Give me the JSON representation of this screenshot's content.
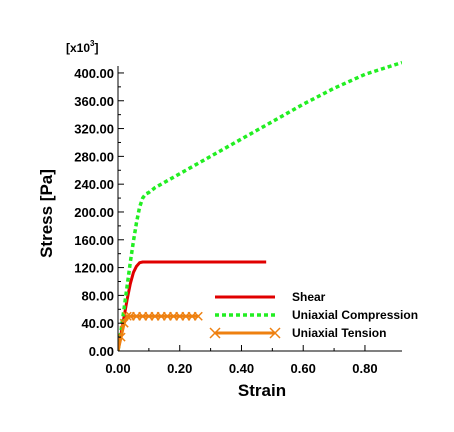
{
  "chart_data": {
    "type": "line",
    "xlabel": "Strain",
    "ylabel": "Stress [Pa]",
    "y_multiplier": {
      "base": "[x10",
      "exponent": "3",
      "close": "]"
    },
    "xlim": [
      0,
      0.92
    ],
    "ylim": [
      0,
      410
    ],
    "x_ticks": [
      0.0,
      0.2,
      0.4,
      0.6,
      0.8
    ],
    "x_tick_labels": [
      "0.00",
      "0.20",
      "0.40",
      "0.60",
      "0.80"
    ],
    "y_ticks": [
      0,
      40,
      80,
      120,
      160,
      200,
      240,
      280,
      320,
      360,
      400
    ],
    "y_tick_labels": [
      "0.00",
      "40.00",
      "80.00",
      "120.00",
      "160.00",
      "200.00",
      "240.00",
      "280.00",
      "320.00",
      "360.00",
      "400.00"
    ],
    "grid": false,
    "legend_position": "lower-right",
    "series": [
      {
        "name": "Shear",
        "color": "#e00000",
        "style": "solid",
        "marker": "none",
        "x": [
          0.0,
          0.01,
          0.02,
          0.03,
          0.04,
          0.05,
          0.06,
          0.07,
          0.08,
          0.1,
          0.2,
          0.3,
          0.4,
          0.48
        ],
        "y": [
          0,
          25,
          50,
          75,
          97,
          113,
          122,
          127,
          128,
          128,
          128,
          128,
          128,
          128
        ]
      },
      {
        "name": "Uniaxial Compression",
        "color": "#22ee22",
        "style": "dotted",
        "marker": "none",
        "x": [
          0.0,
          0.01,
          0.02,
          0.03,
          0.04,
          0.05,
          0.06,
          0.07,
          0.08,
          0.09,
          0.1,
          0.12,
          0.2,
          0.3,
          0.4,
          0.5,
          0.6,
          0.7,
          0.8,
          0.92
        ],
        "y": [
          0,
          30,
          62,
          95,
          128,
          158,
          185,
          207,
          220,
          226,
          228,
          235,
          255,
          280,
          305,
          330,
          355,
          378,
          398,
          415
        ]
      },
      {
        "name": "Uniaxial Tension",
        "color": "#ee8010",
        "style": "solid",
        "marker": "x",
        "x": [
          0.0,
          0.01,
          0.02,
          0.03,
          0.04,
          0.06,
          0.08,
          0.1,
          0.12,
          0.14,
          0.16,
          0.18,
          0.2,
          0.22,
          0.24,
          0.26
        ],
        "y": [
          0,
          20,
          40,
          50,
          50,
          50,
          50,
          50,
          50,
          50,
          50,
          50,
          50,
          50,
          50,
          50
        ]
      }
    ]
  }
}
